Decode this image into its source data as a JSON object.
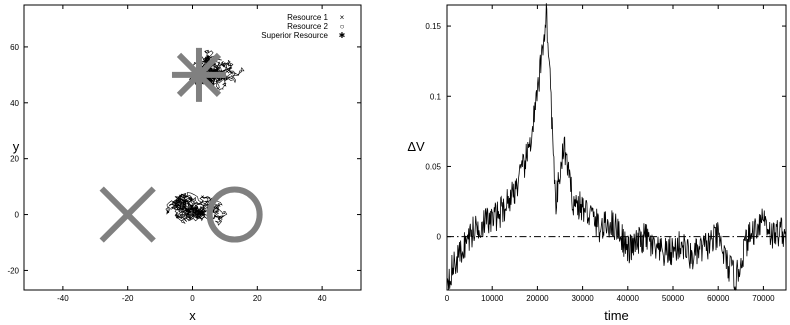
{
  "chart_data": [
    {
      "type": "scatter",
      "title": "",
      "xlabel": "x",
      "ylabel": "y",
      "xlim": [
        -52,
        52
      ],
      "ylim": [
        -27,
        75
      ],
      "xticks": [
        -40,
        -20,
        0,
        20,
        40
      ],
      "yticks": [
        -20,
        0,
        20,
        40,
        60
      ],
      "grid": false,
      "legend_position": "top-right",
      "legend": [
        {
          "label": "Resource 1",
          "marker": "×"
        },
        {
          "label": "Resource 2",
          "marker": "○"
        },
        {
          "label": "Superior Resource",
          "marker": "✱"
        }
      ],
      "resources": [
        {
          "name": "Resource 1",
          "x": -20,
          "y": 0
        },
        {
          "name": "Resource 2",
          "x": 13,
          "y": 0
        },
        {
          "name": "Superior Resource",
          "x": 2,
          "y": 50
        }
      ],
      "trajectory_clusters": [
        {
          "center_x": 5,
          "center_y": 52,
          "spread": 12
        },
        {
          "center_x": 0,
          "center_y": 0,
          "spread": 14
        }
      ]
    },
    {
      "type": "line",
      "title": "",
      "xlabel": "time",
      "ylabel": "ΔV",
      "xlim": [
        0,
        75000
      ],
      "ylim": [
        -0.038,
        0.165
      ],
      "xticks": [
        0,
        10000,
        20000,
        30000,
        40000,
        50000,
        60000,
        70000
      ],
      "yticks": [
        0,
        0.05,
        0.1,
        0.15
      ],
      "ytick_labels": [
        "0",
        "0.05",
        "0.1",
        "0.15"
      ],
      "reference_line": {
        "y": 0,
        "style": "dash-dot"
      },
      "grid": false,
      "series": [
        {
          "name": "",
          "x": [
            0,
            2000,
            4000,
            6000,
            8000,
            10000,
            12000,
            14000,
            16000,
            18000,
            20000,
            21000,
            22000,
            23000,
            24000,
            25000,
            26000,
            27000,
            28000,
            30000,
            32000,
            34000,
            36000,
            38000,
            40000,
            42000,
            44000,
            46000,
            48000,
            50000,
            52000,
            54000,
            56000,
            58000,
            60000,
            62000,
            64000,
            66000,
            68000,
            70000,
            72000,
            74000,
            75000
          ],
          "y": [
            -0.03,
            -0.018,
            -0.005,
            0.005,
            0.01,
            0.012,
            0.018,
            0.028,
            0.04,
            0.06,
            0.1,
            0.13,
            0.16,
            0.1,
            0.02,
            0.045,
            0.065,
            0.04,
            0.025,
            0.02,
            0.015,
            0.005,
            0.01,
            0.005,
            -0.01,
            -0.005,
            0.0,
            -0.01,
            -0.012,
            -0.01,
            -0.005,
            -0.015,
            -0.01,
            -0.005,
            0.0,
            -0.02,
            -0.03,
            -0.005,
            0.005,
            0.015,
            0.0,
            0.005,
            0.0
          ]
        }
      ]
    }
  ]
}
